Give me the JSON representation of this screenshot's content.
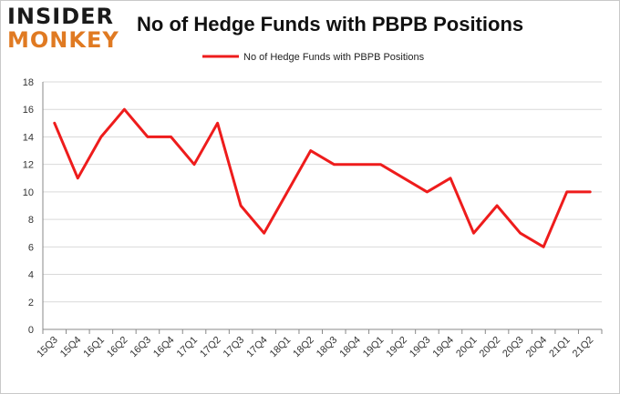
{
  "logo": {
    "line1": "INSIDER",
    "line2": "MONKEY"
  },
  "colors": {
    "series": "#ee1c1c",
    "grid": "#d9d9d9",
    "axis": "#888888",
    "logo_accent": "#e07a22"
  },
  "chart_data": {
    "type": "line",
    "title": "No of Hedge Funds with PBPB Positions",
    "xlabel": "",
    "ylabel": "",
    "ylim": [
      0,
      18
    ],
    "yticks": [
      0,
      2,
      4,
      6,
      8,
      10,
      12,
      14,
      16,
      18
    ],
    "grid": true,
    "legend_position": "top-center",
    "categories": [
      "15Q3",
      "15Q4",
      "16Q1",
      "16Q2",
      "16Q3",
      "16Q4",
      "17Q1",
      "17Q2",
      "17Q3",
      "17Q4",
      "18Q1",
      "18Q2",
      "18Q3",
      "18Q4",
      "19Q1",
      "19Q2",
      "19Q3",
      "19Q4",
      "20Q1",
      "20Q2",
      "20Q3",
      "20Q4",
      "21Q1",
      "21Q2"
    ],
    "series": [
      {
        "name": "No of Hedge Funds with PBPB Positions",
        "values": [
          15,
          11,
          14,
          16,
          14,
          14,
          12,
          15,
          9,
          7,
          10,
          13,
          12,
          12,
          12,
          11,
          10,
          11,
          7,
          9,
          7,
          6,
          10,
          10
        ]
      }
    ]
  }
}
